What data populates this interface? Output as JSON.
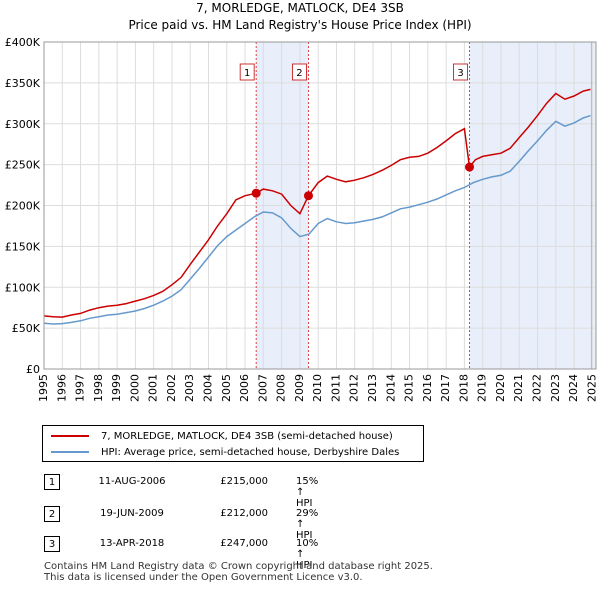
{
  "chart_data": {
    "type": "line",
    "title": "7, MORLEDGE, MATLOCK, DE4 3SB",
    "subtitle": "Price paid vs. HM Land Registry's House Price Index (HPI)",
    "ylim": [
      0,
      400000
    ],
    "xlim": [
      1995,
      2025.2
    ],
    "y_ticks": [
      {
        "value": 0,
        "label": "£0"
      },
      {
        "value": 50000,
        "label": "£50K"
      },
      {
        "value": 100000,
        "label": "£100K"
      },
      {
        "value": 150000,
        "label": "£150K"
      },
      {
        "value": 200000,
        "label": "£200K"
      },
      {
        "value": 250000,
        "label": "£250K"
      },
      {
        "value": 300000,
        "label": "£300K"
      },
      {
        "value": 350000,
        "label": "£350K"
      },
      {
        "value": 400000,
        "label": "£400K"
      }
    ],
    "x_ticks": [
      "1995",
      "1996",
      "1997",
      "1998",
      "1999",
      "2000",
      "2001",
      "2002",
      "2003",
      "2004",
      "2005",
      "2006",
      "2007",
      "2008",
      "2009",
      "2010",
      "2011",
      "2012",
      "2013",
      "2014",
      "2015",
      "2016",
      "2017",
      "2018",
      "2019",
      "2020",
      "2021",
      "2022",
      "2023",
      "2024",
      "2025"
    ],
    "grid": true,
    "series": [
      {
        "name": "7, MORLEDGE, MATLOCK, DE4 3SB (semi-detached house)",
        "color": "#cc0000",
        "points": [
          [
            1995.0,
            65000
          ],
          [
            1995.5,
            64000
          ],
          [
            1996.0,
            63500
          ],
          [
            1996.5,
            66000
          ],
          [
            1997.0,
            68000
          ],
          [
            1997.5,
            72000
          ],
          [
            1998.0,
            75000
          ],
          [
            1998.5,
            77000
          ],
          [
            1999.0,
            78000
          ],
          [
            1999.5,
            80000
          ],
          [
            2000.0,
            83000
          ],
          [
            2000.5,
            86000
          ],
          [
            2001.0,
            90000
          ],
          [
            2001.5,
            95000
          ],
          [
            2002.0,
            103000
          ],
          [
            2002.5,
            112000
          ],
          [
            2003.0,
            128000
          ],
          [
            2003.5,
            143000
          ],
          [
            2004.0,
            158000
          ],
          [
            2004.5,
            175000
          ],
          [
            2005.0,
            190000
          ],
          [
            2005.5,
            207000
          ],
          [
            2006.0,
            212000
          ],
          [
            2006.61,
            215000
          ],
          [
            2007.0,
            220000
          ],
          [
            2007.5,
            218000
          ],
          [
            2008.0,
            214000
          ],
          [
            2008.5,
            200000
          ],
          [
            2009.0,
            190000
          ],
          [
            2009.47,
            212000
          ],
          [
            2010.0,
            228000
          ],
          [
            2010.5,
            236000
          ],
          [
            2011.0,
            232000
          ],
          [
            2011.5,
            229000
          ],
          [
            2012.0,
            231000
          ],
          [
            2012.5,
            234000
          ],
          [
            2013.0,
            238000
          ],
          [
            2013.5,
            243000
          ],
          [
            2014.0,
            249000
          ],
          [
            2014.5,
            256000
          ],
          [
            2015.0,
            259000
          ],
          [
            2015.5,
            260000
          ],
          [
            2016.0,
            264000
          ],
          [
            2016.5,
            271000
          ],
          [
            2017.0,
            279000
          ],
          [
            2017.5,
            288000
          ],
          [
            2018.0,
            294000
          ],
          [
            2018.28,
            247000
          ],
          [
            2018.6,
            256000
          ],
          [
            2019.0,
            260000
          ],
          [
            2019.5,
            262000
          ],
          [
            2020.0,
            264000
          ],
          [
            2020.5,
            270000
          ],
          [
            2021.0,
            283000
          ],
          [
            2021.5,
            296000
          ],
          [
            2022.0,
            310000
          ],
          [
            2022.5,
            325000
          ],
          [
            2023.0,
            337000
          ],
          [
            2023.5,
            330000
          ],
          [
            2024.0,
            334000
          ],
          [
            2024.5,
            340000
          ],
          [
            2024.9,
            342000
          ]
        ]
      },
      {
        "name": "HPI: Average price, semi-detached house, Derbyshire Dales",
        "color": "#6699cc",
        "points": [
          [
            1995.0,
            56000
          ],
          [
            1995.5,
            55000
          ],
          [
            1996.0,
            55500
          ],
          [
            1996.5,
            57000
          ],
          [
            1997.0,
            59000
          ],
          [
            1997.5,
            62000
          ],
          [
            1998.0,
            64000
          ],
          [
            1998.5,
            66000
          ],
          [
            1999.0,
            67000
          ],
          [
            1999.5,
            69000
          ],
          [
            2000.0,
            71000
          ],
          [
            2000.5,
            74000
          ],
          [
            2001.0,
            78000
          ],
          [
            2001.5,
            83000
          ],
          [
            2002.0,
            89000
          ],
          [
            2002.5,
            97000
          ],
          [
            2003.0,
            110000
          ],
          [
            2003.5,
            123000
          ],
          [
            2004.0,
            137000
          ],
          [
            2004.5,
            151000
          ],
          [
            2005.0,
            162000
          ],
          [
            2005.5,
            170000
          ],
          [
            2006.0,
            178000
          ],
          [
            2006.5,
            186000
          ],
          [
            2007.0,
            192000
          ],
          [
            2007.5,
            191000
          ],
          [
            2008.0,
            185000
          ],
          [
            2008.5,
            172000
          ],
          [
            2009.0,
            162000
          ],
          [
            2009.5,
            165000
          ],
          [
            2010.0,
            178000
          ],
          [
            2010.5,
            184000
          ],
          [
            2011.0,
            180000
          ],
          [
            2011.5,
            178000
          ],
          [
            2012.0,
            179000
          ],
          [
            2012.5,
            181000
          ],
          [
            2013.0,
            183000
          ],
          [
            2013.5,
            186000
          ],
          [
            2014.0,
            191000
          ],
          [
            2014.5,
            196000
          ],
          [
            2015.0,
            198000
          ],
          [
            2015.5,
            201000
          ],
          [
            2016.0,
            204000
          ],
          [
            2016.5,
            208000
          ],
          [
            2017.0,
            213000
          ],
          [
            2017.5,
            218000
          ],
          [
            2018.0,
            222000
          ],
          [
            2018.5,
            228000
          ],
          [
            2019.0,
            232000
          ],
          [
            2019.5,
            235000
          ],
          [
            2020.0,
            237000
          ],
          [
            2020.5,
            242000
          ],
          [
            2021.0,
            254000
          ],
          [
            2021.5,
            267000
          ],
          [
            2022.0,
            279000
          ],
          [
            2022.5,
            292000
          ],
          [
            2023.0,
            303000
          ],
          [
            2023.5,
            297000
          ],
          [
            2024.0,
            301000
          ],
          [
            2024.5,
            307000
          ],
          [
            2024.9,
            310000
          ]
        ]
      }
    ],
    "sales": [
      {
        "num": "1",
        "x": 2006.61,
        "price": 215000
      },
      {
        "num": "2",
        "x": 2009.47,
        "price": 212000
      },
      {
        "num": "3",
        "x": 2018.28,
        "price": 247000
      }
    ],
    "shaded_spans": [
      [
        2006.61,
        2009.47
      ],
      [
        2018.28,
        2025.2
      ]
    ]
  },
  "legend": {
    "property_label": "7, MORLEDGE, MATLOCK, DE4 3SB (semi-detached house)",
    "hpi_label": "HPI: Average price, semi-detached house, Derbyshire Dales",
    "property_color": "#cc0000",
    "hpi_color": "#6699cc"
  },
  "transactions": [
    {
      "num": "1",
      "date": "11-AUG-2006",
      "price": "£215,000",
      "hpi": "15% ↑ HPI"
    },
    {
      "num": "2",
      "date": "19-JUN-2009",
      "price": "£212,000",
      "hpi": "29% ↑ HPI"
    },
    {
      "num": "3",
      "date": "13-APR-2018",
      "price": "£247,000",
      "hpi": "10% ↑ HPI"
    }
  ],
  "footer": {
    "line1": "Contains HM Land Registry data © Crown copyright and database right 2025.",
    "line2": "This data is licensed under the Open Government Licence v3.0."
  }
}
